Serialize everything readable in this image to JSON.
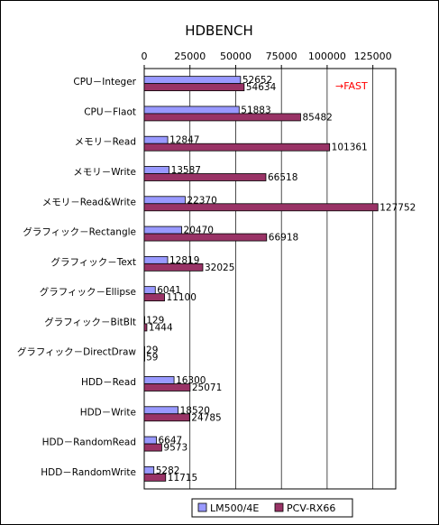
{
  "chart_data": {
    "type": "bar",
    "orientation": "horizontal",
    "title": "HDBENCH",
    "xlim": [
      0,
      137500
    ],
    "xticks": [
      0,
      25000,
      50000,
      75000,
      100000,
      125000
    ],
    "grid": true,
    "legend_position": "bottom-right",
    "categories": [
      "CPU－Integer",
      "CPU－Flaot",
      "メモリ－Read",
      "メモリ－Write",
      "メモリ－Read&Write",
      "グラフィック－Rectangle",
      "グラフィック－Text",
      "グラフィック－Ellipse",
      "グラフィック－BitBlt",
      "グラフィック－DirectDraw",
      "HDD－Read",
      "HDD－Write",
      "HDD－RandomRead",
      "HDD－RandomWrite"
    ],
    "series": [
      {
        "name": "LM500/4E",
        "color": "#9999ff",
        "values": [
          52652,
          51883,
          12847,
          13587,
          22370,
          20470,
          12819,
          6041,
          129,
          29,
          16300,
          18520,
          6647,
          5282
        ]
      },
      {
        "name": "PCV-RX66",
        "color": "#993366",
        "values": [
          54634,
          85482,
          101361,
          66518,
          127752,
          66918,
          32025,
          11100,
          1444,
          59,
          25071,
          24785,
          9573,
          11715
        ]
      }
    ],
    "annotations": [
      {
        "text": "→FAST",
        "color": "#ff0000"
      }
    ]
  }
}
